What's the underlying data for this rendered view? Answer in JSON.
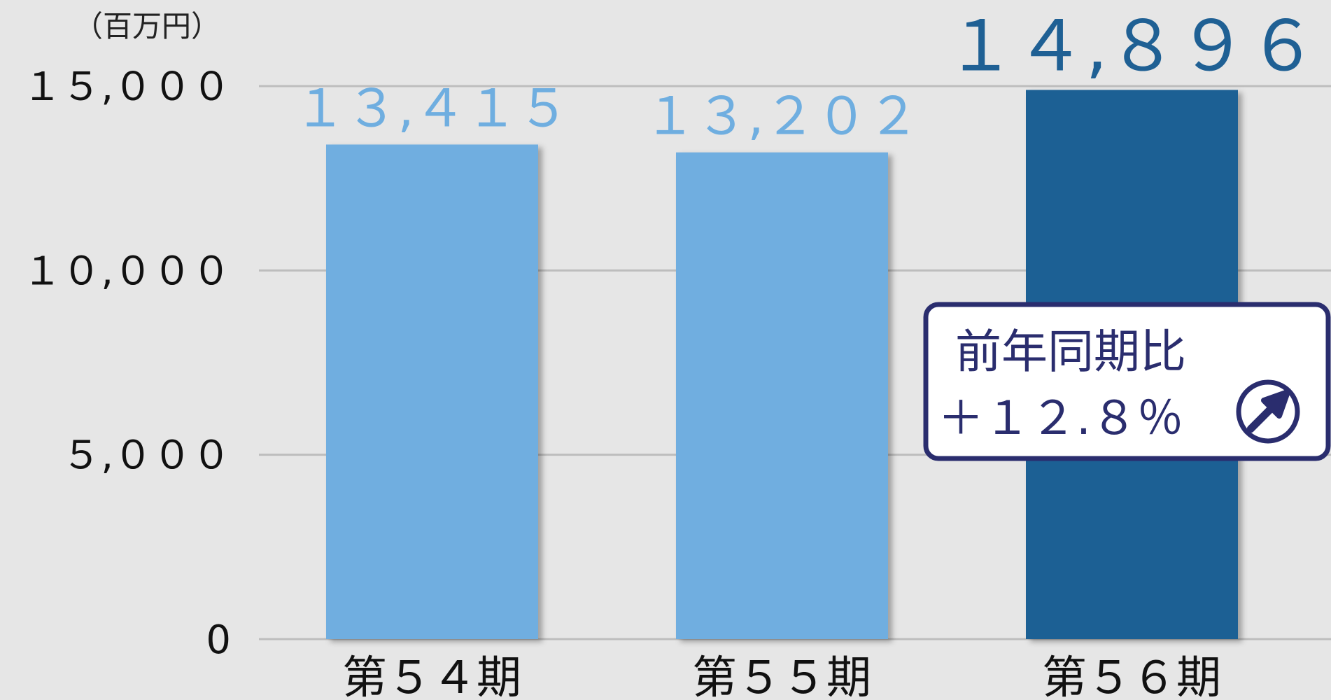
{
  "chart_data": {
    "type": "bar",
    "unit": "（百万円）",
    "categories": [
      "第５４期",
      "第５５期",
      "第５６期"
    ],
    "values": [
      13415,
      13202,
      14896
    ],
    "value_labels": [
      "１３,４１５",
      "１３,２０２",
      "１４,８９６"
    ],
    "colors": [
      "#6faee0",
      "#6faee0",
      "#1f6094"
    ],
    "ylim": [
      0,
      15000
    ],
    "yticks": [
      0,
      {
        "value": 5000,
        "label": "５,０００"
      },
      {
        "value": 10000,
        "label": "１０,０００"
      },
      {
        "value": 15000,
        "label": "１５,０００"
      }
    ],
    "grid": true,
    "annotation": {
      "title": "前年同期比",
      "text": "＋１２.８％"
    }
  }
}
